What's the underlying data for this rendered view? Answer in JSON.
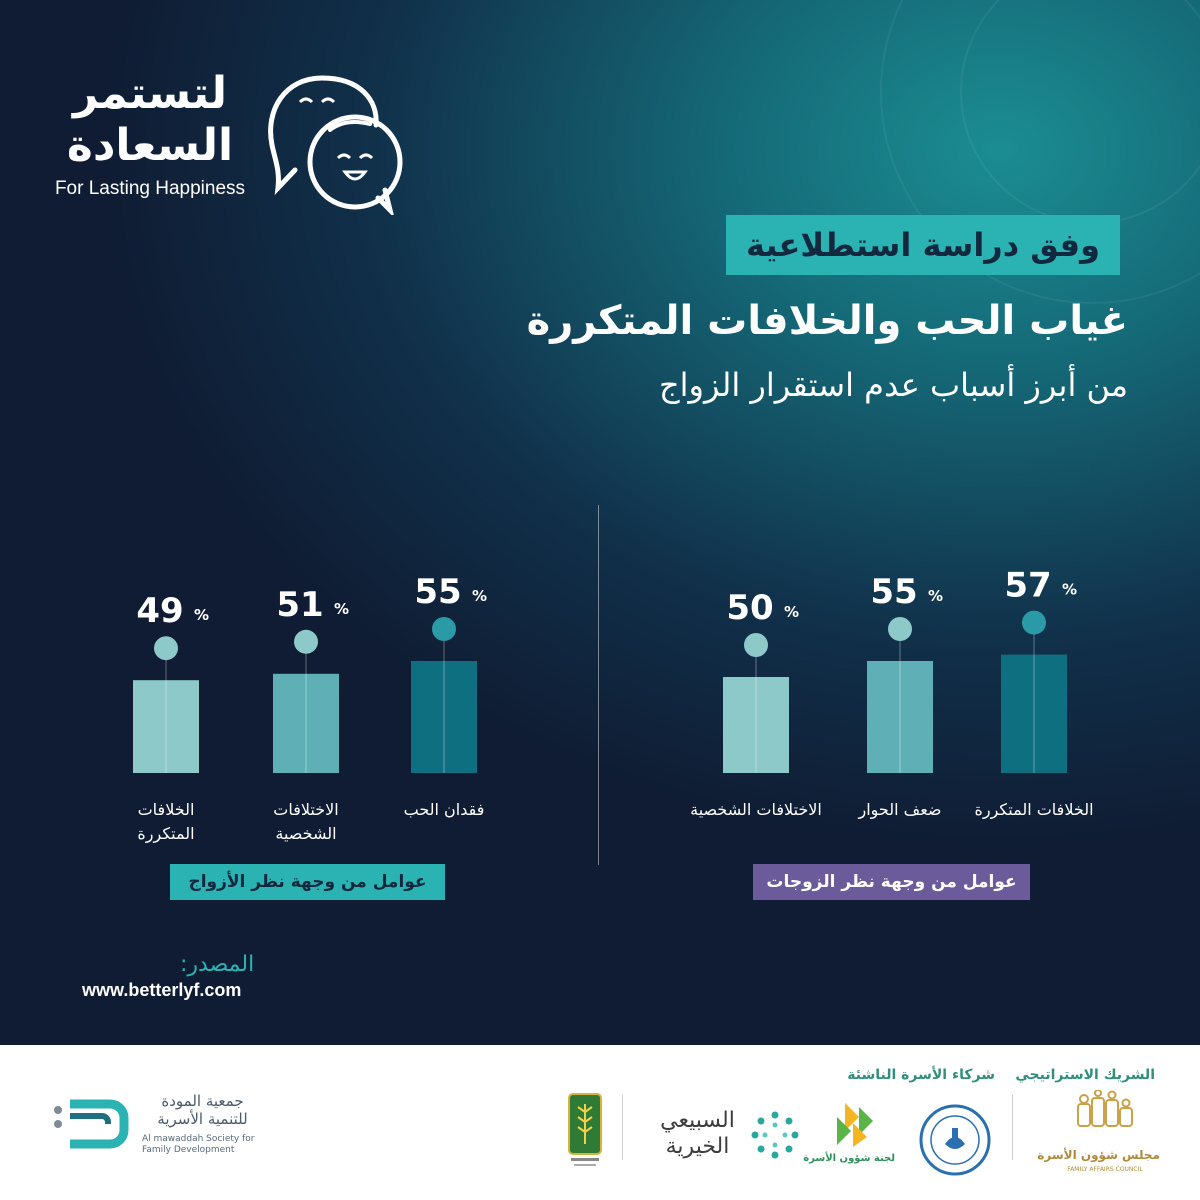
{
  "logo": {
    "arabic_line1": "لتستمر",
    "arabic_line2": "السعادة",
    "english": "For Lasting Happiness",
    "icon": "smiling-faces-speech-bubble-icon"
  },
  "badge": "وفق دراسة استطلاعية",
  "title": "غياب الحب والخلافات المتكررة",
  "subtitle": "من أبرز أسباب عدم استقرار الزواج",
  "colors": {
    "teal_badge": "#2bb3b3",
    "purple_badge": "#6b5b9a",
    "bar_light": "#8ec9ca",
    "bar_mid": "#5fb0b6",
    "bar_dark": "#0e6f80"
  },
  "chart_data": [
    {
      "type": "bar",
      "caption": "عوامل من وجهة نظر الأزواج",
      "categories": [
        "فقدان الحب",
        "الاختلافات الشخصية",
        "الخلافات المتكررة"
      ],
      "values": [
        55,
        51,
        49
      ],
      "value_labels": [
        "55",
        "51",
        "49"
      ],
      "unit": "%",
      "label_lines": [
        [
          "فقدان الحب"
        ],
        [
          "الاختلافات",
          "الشخصية"
        ],
        [
          "الخلافات",
          "المتكررة"
        ]
      ]
    },
    {
      "type": "bar",
      "caption": "عوامل من وجهة نظر الزوجات",
      "categories": [
        "الخلافات المتكررة",
        "ضعف الحوار",
        "الاختلافات الشخصية"
      ],
      "values": [
        57,
        55,
        50
      ],
      "value_labels": [
        "57",
        "55",
        "50"
      ],
      "unit": "%",
      "label_lines": [
        [
          "الخلافات المتكررة"
        ],
        [
          "ضعف الحوار"
        ],
        [
          "الاختلافات الشخصية"
        ]
      ]
    }
  ],
  "source": {
    "label": "المصدر:",
    "url": "www.betterlyf.com"
  },
  "footer": {
    "strategic_partner_label": "الشريك الاستراتيجي",
    "emerging_family_partners_label": "شركاء الأسرة الناشئة",
    "logos": [
      {
        "name": "family-affairs-council-logo",
        "ar": "مجلس شؤون الأسرة",
        "en": "FAMILY AFFAIRS COUNCIL"
      },
      {
        "name": "human-rights-commission-logo",
        "ar": "",
        "en": ""
      },
      {
        "name": "family-affairs-committee-logo",
        "ar": "لجنة شؤون الأسرة",
        "en": ""
      },
      {
        "name": "alsubaie-charity-logo",
        "ar": "السبيعي الخيرية",
        "en": ""
      },
      {
        "name": "green-emblem-logo",
        "ar": "",
        "en": ""
      },
      {
        "name": "almawaddah-society-logo",
        "ar": "جمعية المودة للتنمية الأسرية",
        "en": "Al mawaddah Society for Family Development"
      }
    ]
  }
}
